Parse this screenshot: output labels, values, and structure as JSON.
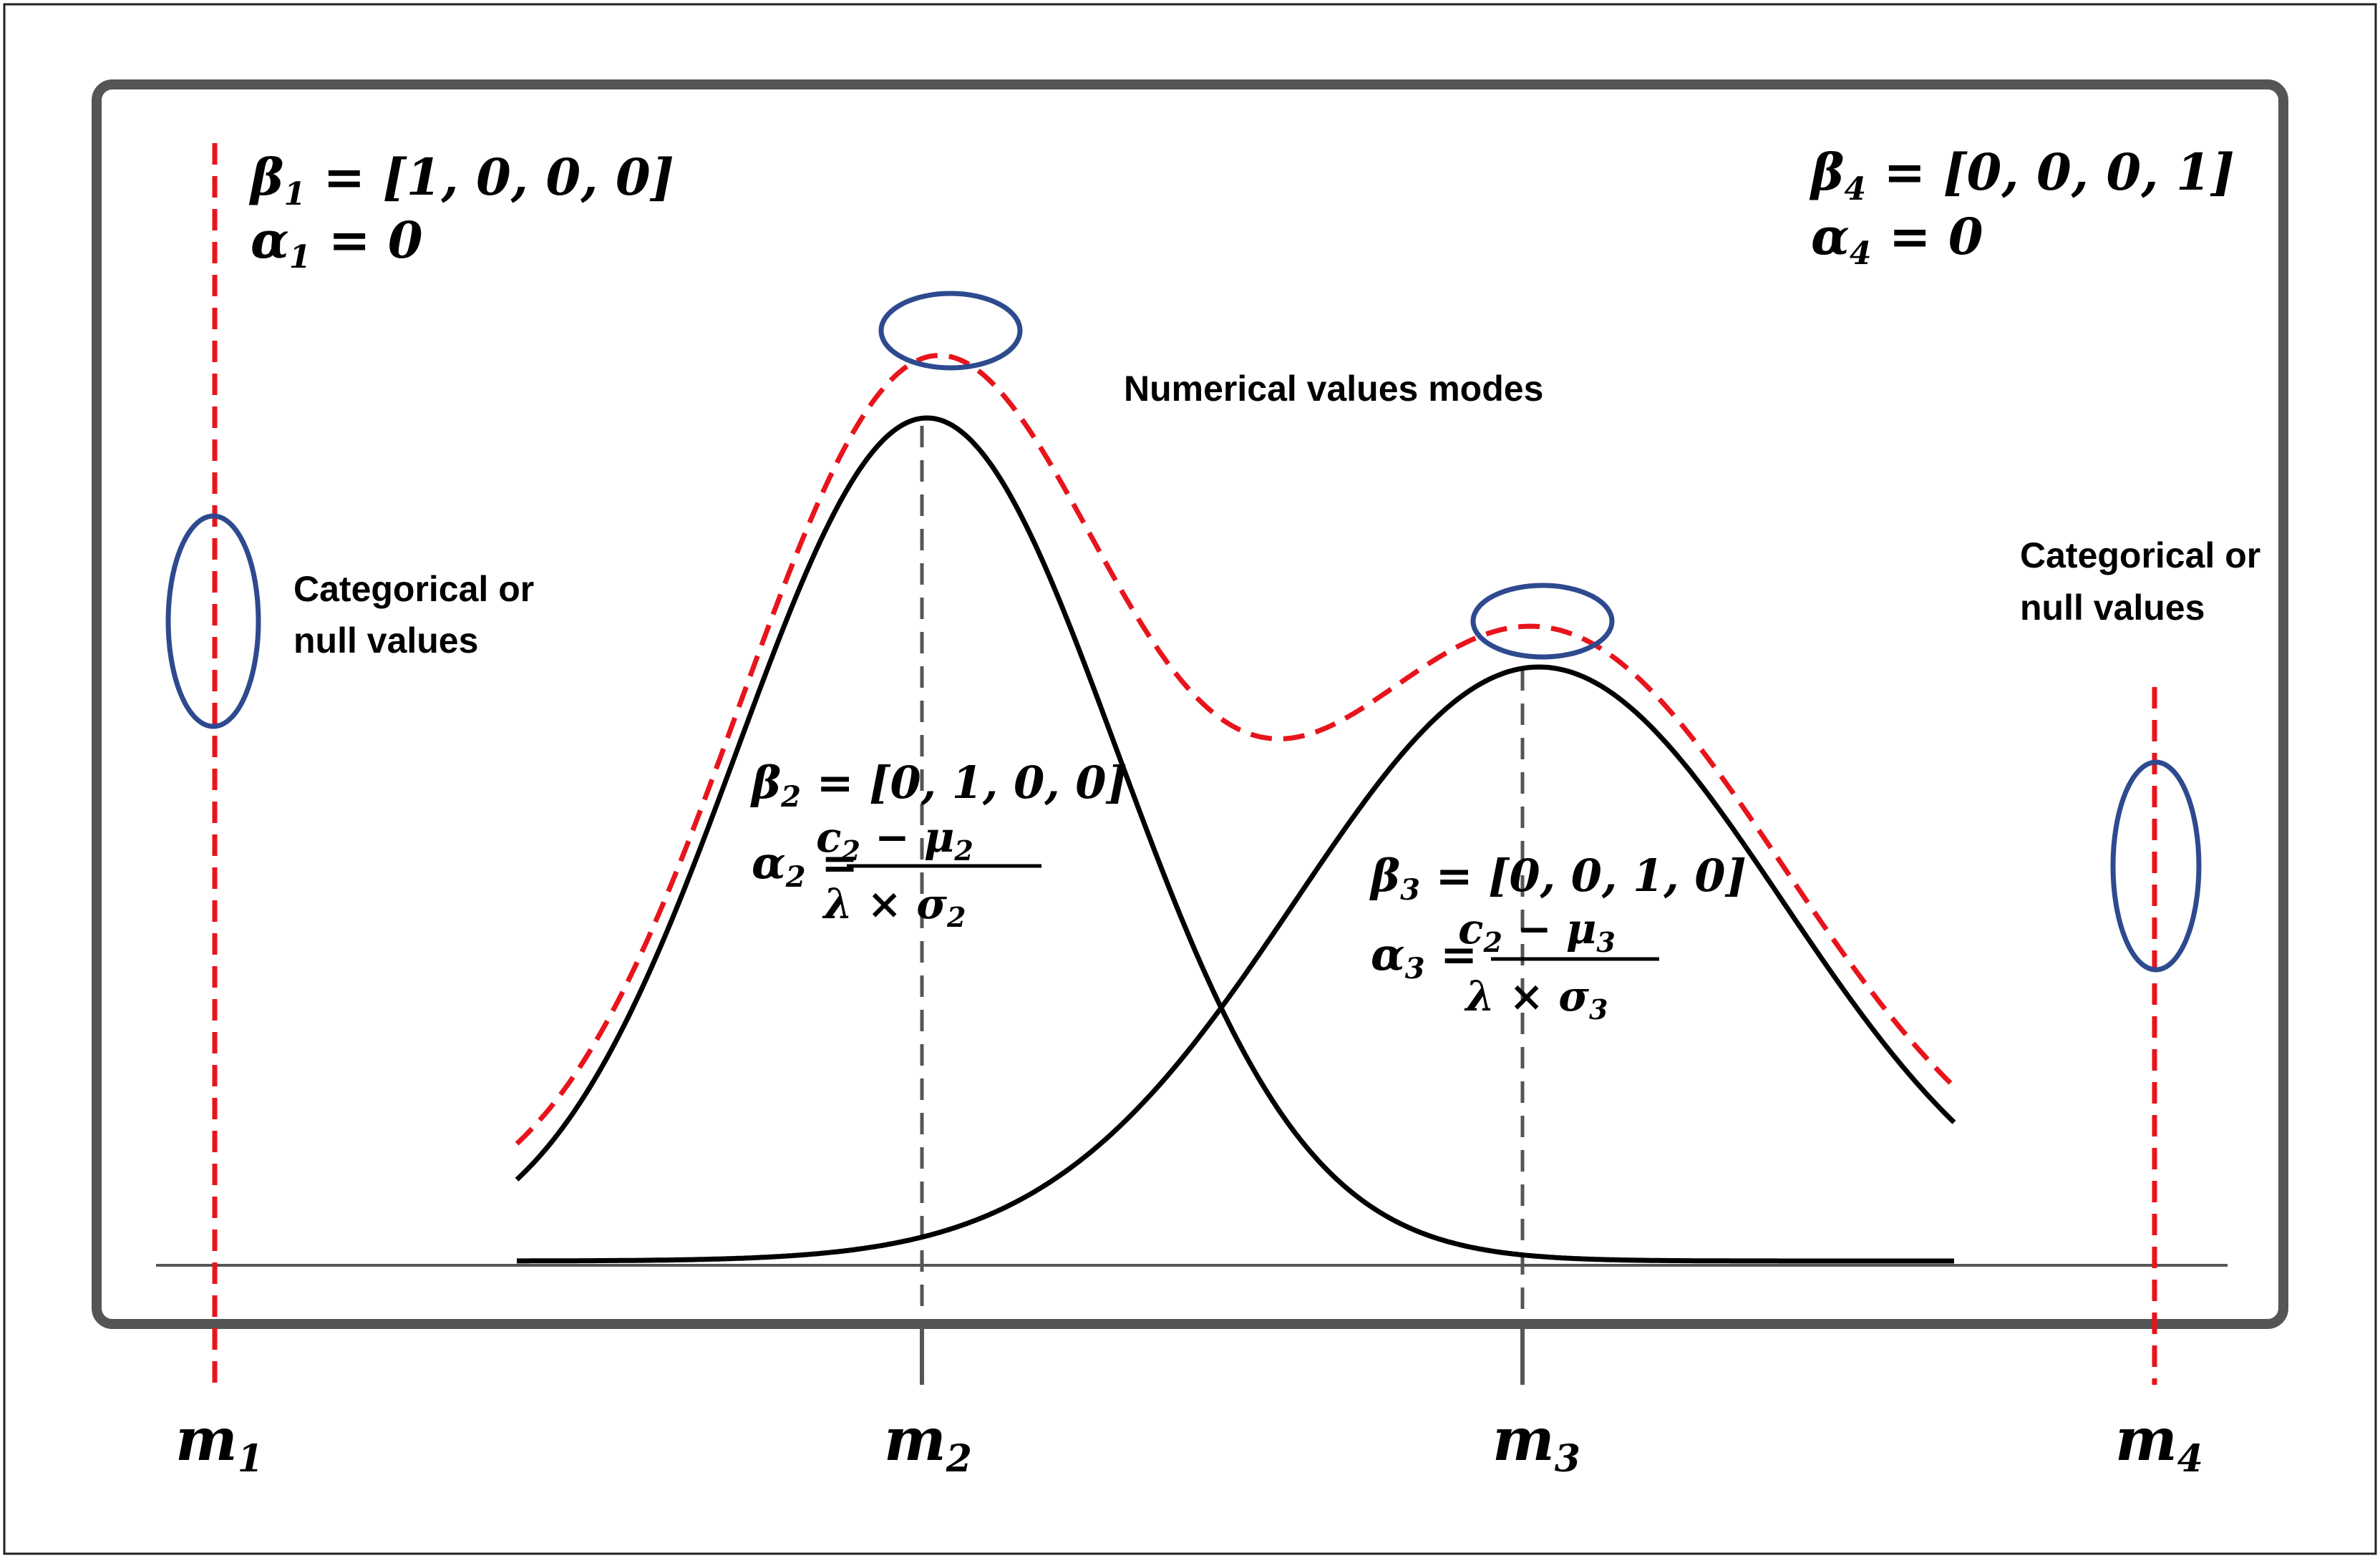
{
  "modes": [
    {
      "id": "m1",
      "label": "m",
      "sub": "1"
    },
    {
      "id": "m2",
      "label": "m",
      "sub": "2"
    },
    {
      "id": "m3",
      "label": "m",
      "sub": "3"
    },
    {
      "id": "m4",
      "label": "m",
      "sub": "4"
    }
  ],
  "equations": {
    "beta1": {
      "lhs": "β",
      "sub": "1",
      "rhs": " = [1, 0, 0, 0]"
    },
    "alpha1": {
      "lhs": "α",
      "sub": "1",
      "rhs": " = 0"
    },
    "beta4": {
      "lhs": "β",
      "sub": "4",
      "rhs": " = [0, 0, 0, 1]"
    },
    "alpha4": {
      "lhs": "α",
      "sub": "4",
      "rhs": " = 0"
    },
    "beta2": {
      "lhs": "β",
      "sub": "2",
      "rhs": " = [0, 1, 0, 0]"
    },
    "alpha2": {
      "lhs": "α",
      "sub": "2",
      "eq": " =",
      "num_a": "c",
      "num_a_sub": "2",
      "num_op": " − ",
      "num_b": "μ",
      "num_b_sub": "2",
      "den_a": "λ × σ",
      "den_sub": "2"
    },
    "beta3": {
      "lhs": "β",
      "sub": "3",
      "rhs": " = [0, 0, 1, 0]"
    },
    "alpha3": {
      "lhs": "α",
      "sub": "3",
      "eq": " =",
      "num_a": "c",
      "num_a_sub": "2",
      "num_op": " − ",
      "num_b": "μ",
      "num_b_sub": "3",
      "den_a": "λ × σ",
      "den_sub": "3"
    }
  },
  "annotations": {
    "left_categorical": [
      "Categorical or",
      "null values"
    ],
    "right_categorical": [
      "Categorical or",
      "null values"
    ],
    "numerical_modes": "Numerical values modes"
  },
  "colors": {
    "frame": "#555555",
    "curve": "#000000",
    "mixture": "#e8141c",
    "ellipse": "#2e4a8f",
    "guide": "#555555"
  }
}
